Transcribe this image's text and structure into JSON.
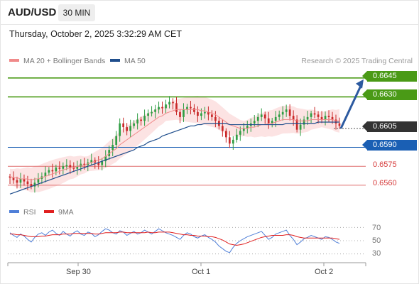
{
  "header": {
    "symbol": "AUD/USD",
    "timeframe": "30 MIN"
  },
  "timestamp": "Thursday, October 2, 2025 3:32:29 AM CET",
  "legend": {
    "ma20_label": "MA 20 + Bollinger Bands",
    "ma20_color": "#f08a8a",
    "ma50_label": "MA 50",
    "ma50_color": "#1f4e8c",
    "copyright": "Research © 2025 Trading Central"
  },
  "rsi_legend": {
    "rsi_label": "RSI",
    "rsi_color": "#4f7fd8",
    "ma_label": "9MA",
    "ma_color": "#e01f1f"
  },
  "colors": {
    "resistance": "#4a9a16",
    "pivot": "#1a5fb4",
    "support": "#e07070",
    "current": "#333333",
    "up_candle": "#2f9e44",
    "down_candle": "#c92a2a"
  },
  "chart_data": {
    "type": "candlestick",
    "ylim": [
      0.6547,
      0.6655
    ],
    "x_ticks": [
      "Sep 30",
      "Oct 1",
      "Oct 2"
    ],
    "levels": [
      {
        "label": "0.6645",
        "value": 0.6645,
        "kind": "resistance"
      },
      {
        "label": "0.6630",
        "value": 0.663,
        "kind": "resistance"
      },
      {
        "label": "0.6605",
        "value": 0.6605,
        "kind": "current"
      },
      {
        "label": "0.6590",
        "value": 0.659,
        "kind": "pivot"
      },
      {
        "label": "0.6575",
        "value": 0.6575,
        "kind": "support"
      },
      {
        "label": "0.6560",
        "value": 0.656,
        "kind": "support"
      }
    ],
    "closes": [
      0.6566,
      0.6564,
      0.6562,
      0.6565,
      0.6563,
      0.6561,
      0.6559,
      0.6562,
      0.6565,
      0.6567,
      0.657,
      0.6572,
      0.6571,
      0.6574,
      0.6573,
      0.6575,
      0.6576,
      0.6574,
      0.6573,
      0.6575,
      0.6577,
      0.6576,
      0.6578,
      0.658,
      0.6578,
      0.6576,
      0.6579,
      0.6583,
      0.6588,
      0.6592,
      0.6599,
      0.6609,
      0.6606,
      0.6603,
      0.6607,
      0.6609,
      0.6612,
      0.6611,
      0.6615,
      0.6617,
      0.6618,
      0.662,
      0.6622,
      0.6621,
      0.6624,
      0.6626,
      0.6625,
      0.6618,
      0.6614,
      0.662,
      0.6622,
      0.6621,
      0.6618,
      0.6615,
      0.6617,
      0.6618,
      0.6616,
      0.6614,
      0.6611,
      0.6607,
      0.6603,
      0.6598,
      0.6593,
      0.6596,
      0.66,
      0.6603,
      0.6605,
      0.6607,
      0.6609,
      0.6611,
      0.6614,
      0.6616,
      0.6613,
      0.6609,
      0.6611,
      0.6614,
      0.6616,
      0.6618,
      0.662,
      0.6615,
      0.6612,
      0.6604,
      0.6608,
      0.6612,
      0.6614,
      0.6617,
      0.6616,
      0.6614,
      0.6612,
      0.6615,
      0.6614,
      0.6612,
      0.6609,
      0.6607
    ],
    "projection": {
      "from": 0.6605,
      "to": 0.6645
    },
    "ma20": [
      0.6567,
      0.6566,
      0.6566,
      0.6565,
      0.6565,
      0.6565,
      0.6564,
      0.6565,
      0.6565,
      0.6566,
      0.6567,
      0.6568,
      0.6569,
      0.657,
      0.6571,
      0.6572,
      0.6573,
      0.6574,
      0.6574,
      0.6575,
      0.6576,
      0.6576,
      0.6577,
      0.6578,
      0.6579,
      0.658,
      0.6581,
      0.6583,
      0.6585,
      0.6587,
      0.6589,
      0.6592,
      0.6594,
      0.6596,
      0.6598,
      0.66,
      0.6602,
      0.6604,
      0.6606,
      0.6608,
      0.661,
      0.6612,
      0.6614,
      0.6615,
      0.6617,
      0.6618,
      0.6619,
      0.662,
      0.662,
      0.662,
      0.662,
      0.662,
      0.662,
      0.662,
      0.6619,
      0.6619,
      0.6618,
      0.6617,
      0.6616,
      0.6614,
      0.6612,
      0.661,
      0.6608,
      0.6607,
      0.6606,
      0.6605,
      0.6605,
      0.6605,
      0.6606,
      0.6606,
      0.6607,
      0.6608,
      0.6608,
      0.6609,
      0.6609,
      0.661,
      0.6611,
      0.6612,
      0.6612,
      0.6612,
      0.6612,
      0.6611,
      0.6611,
      0.6611,
      0.6611,
      0.6612,
      0.6612,
      0.6612,
      0.6612,
      0.6612,
      0.6612,
      0.6612,
      0.6611,
      0.6611
    ],
    "ma50": [
      0.6553,
      0.6554,
      0.6555,
      0.6556,
      0.6557,
      0.6558,
      0.6559,
      0.656,
      0.6561,
      0.6562,
      0.6563,
      0.6564,
      0.6565,
      0.6566,
      0.6567,
      0.6568,
      0.6569,
      0.657,
      0.6571,
      0.6572,
      0.6573,
      0.6574,
      0.6575,
      0.6576,
      0.6577,
      0.6578,
      0.6579,
      0.658,
      0.6581,
      0.6582,
      0.6583,
      0.6584,
      0.6585,
      0.6586,
      0.6587,
      0.6588,
      0.659,
      0.6591,
      0.6592,
      0.6594,
      0.6595,
      0.6596,
      0.6597,
      0.6599,
      0.66,
      0.6601,
      0.6602,
      0.6603,
      0.6604,
      0.6605,
      0.6606,
      0.6607,
      0.6607,
      0.6608,
      0.6608,
      0.6609,
      0.6609,
      0.6609,
      0.6609,
      0.6609,
      0.6609,
      0.6609,
      0.6608,
      0.6608,
      0.6608,
      0.6608,
      0.6608,
      0.6608,
      0.6608,
      0.6608,
      0.6608,
      0.6608,
      0.6608,
      0.6608,
      0.6608,
      0.6608,
      0.6608,
      0.6608,
      0.6609,
      0.6609,
      0.6609,
      0.6609,
      0.6609,
      0.6609,
      0.6609,
      0.6609,
      0.6609,
      0.661,
      0.661,
      0.661,
      0.661,
      0.661,
      0.661,
      0.661
    ],
    "rsi": {
      "ylim": [
        20,
        80
      ],
      "ticks": [
        70,
        50,
        30
      ],
      "rsi": [
        62,
        58,
        55,
        60,
        57,
        52,
        48,
        55,
        60,
        62,
        58,
        63,
        66,
        61,
        58,
        64,
        60,
        57,
        62,
        65,
        60,
        58,
        63,
        61,
        56,
        59,
        64,
        68,
        66,
        62,
        60,
        65,
        63,
        58,
        61,
        64,
        60,
        62,
        66,
        63,
        60,
        64,
        68,
        65,
        62,
        60,
        58,
        55,
        52,
        58,
        62,
        60,
        56,
        54,
        57,
        59,
        55,
        52,
        48,
        42,
        38,
        34,
        32,
        40,
        46,
        50,
        53,
        56,
        58,
        60,
        62,
        64,
        58,
        52,
        55,
        60,
        62,
        64,
        66,
        58,
        52,
        44,
        48,
        53,
        55,
        58,
        56,
        54,
        52,
        56,
        55,
        52,
        48,
        46
      ],
      "ma": [
        60,
        60,
        59,
        59,
        58,
        57,
        56,
        56,
        56,
        57,
        57,
        58,
        59,
        59,
        59,
        60,
        60,
        60,
        61,
        61,
        61,
        61,
        61,
        61,
        60,
        60,
        61,
        62,
        62,
        62,
        62,
        63,
        63,
        62,
        62,
        62,
        62,
        62,
        62,
        63,
        62,
        62,
        63,
        63,
        63,
        63,
        62,
        61,
        60,
        59,
        59,
        58,
        58,
        57,
        57,
        57,
        56,
        56,
        55,
        53,
        51,
        48,
        45,
        44,
        43,
        44,
        45,
        47,
        49,
        51,
        53,
        55,
        56,
        57,
        58,
        58,
        58,
        58,
        59,
        59,
        58,
        56,
        55,
        54,
        54,
        54,
        54,
        54,
        54,
        54,
        54,
        54,
        53,
        52
      ]
    }
  },
  "labels": {
    "r1": "0.6645",
    "r2": "0.6630",
    "cur": "0.6605",
    "piv": "0.6590",
    "s1": "0.6575",
    "s2": "0.6560",
    "rsi70": "70",
    "rsi50": "50",
    "rsi30": "30",
    "x1": "Sep 30",
    "x2": "Oct 1",
    "x3": "Oct 2"
  }
}
